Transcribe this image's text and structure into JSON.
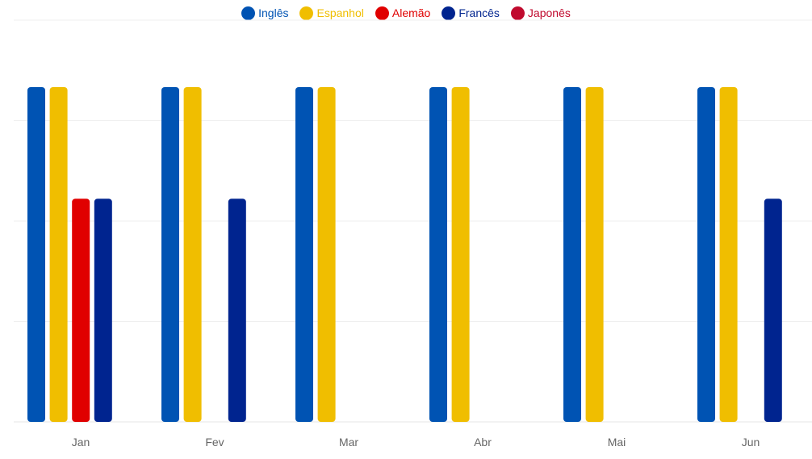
{
  "chart_data": {
    "type": "bar",
    "categories": [
      "Jan",
      "Fev",
      "Mar",
      "Abr",
      "Mai",
      "Jun"
    ],
    "series": [
      {
        "name": "Inglês",
        "color": "#0053b3",
        "values": [
          3,
          3,
          3,
          3,
          3,
          3
        ]
      },
      {
        "name": "Espanhol",
        "color": "#f0be00",
        "values": [
          3,
          3,
          3,
          3,
          3,
          3
        ]
      },
      {
        "name": "Alemão",
        "color": "#e00000",
        "values": [
          2,
          0,
          0,
          0,
          0,
          0
        ]
      },
      {
        "name": "Francês",
        "color": "#00248f",
        "values": [
          2,
          2,
          0,
          0,
          0,
          2
        ]
      },
      {
        "name": "Japonês",
        "color": "#c00a2e",
        "values": [
          0,
          0,
          0,
          0,
          0,
          0
        ]
      }
    ],
    "ylim": [
      0,
      3.6
    ],
    "grid": true,
    "legend_position": "top-center"
  }
}
